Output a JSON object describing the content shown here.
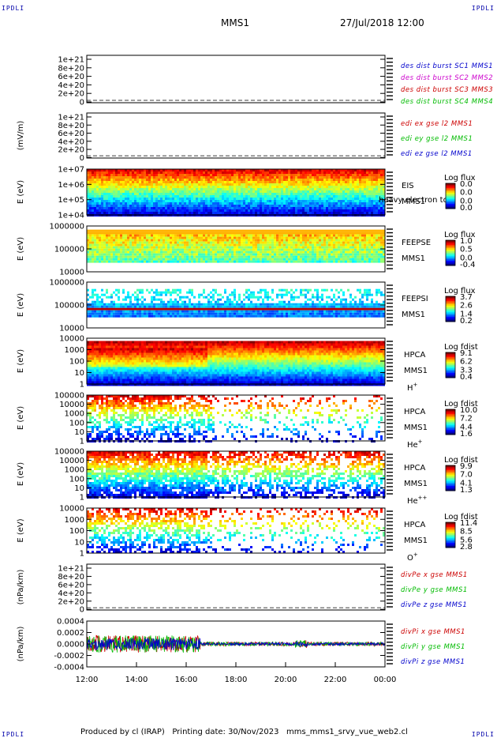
{
  "corner_labels": {
    "tl": "IPDLI",
    "tr": "IPDLI",
    "bl": "IPDLI",
    "br": "IPDLI"
  },
  "header": {
    "spacecraft": "MMS1",
    "datetime": "27/Jul/2018 12:00"
  },
  "footer": {
    "text": "Produced by cl (IRAP)   Printing date: 30/Nov/2023   mms_mms1_srvy_vue_web2.cl"
  },
  "colors": {
    "blue": "#0000cc",
    "magenta": "#cc00cc",
    "red": "#cc0000",
    "green": "#00bb00"
  },
  "chart_data": {
    "type": "stacked-panels",
    "x_ticks": [
      "12:00",
      "14:00",
      "16:00",
      "18:00",
      "20:00",
      "22:00",
      "00:00"
    ],
    "panels": [
      {
        "id": "p1",
        "type": "line",
        "ylabel": "",
        "ticks": [
          "1e+21",
          "8e+20",
          "6e+20",
          "4e+20",
          "2e+20",
          "0"
        ],
        "legend": [
          {
            "text": "des dist burst SC1 MMS1",
            "color": "#0000cc"
          },
          {
            "text": "des dist burst SC2 MMS2",
            "color": "#cc00cc"
          },
          {
            "text": "des dist burst SC3 MMS3",
            "color": "#cc0000"
          },
          {
            "text": "des dist burst SC4 MMS4",
            "color": "#00bb00"
          }
        ]
      },
      {
        "id": "p2",
        "type": "line",
        "ylabel": "(mV/m)",
        "ticks": [
          "1e+21",
          "8e+20",
          "6e+20",
          "4e+20",
          "2e+20",
          "0"
        ],
        "legend": [
          {
            "text": "edi ex gse l2 MMS1",
            "color": "#cc0000"
          },
          {
            "text": "edi ey gse l2 MMS1",
            "color": "#00bb00"
          },
          {
            "text": "edi ez gse l2 MMS1",
            "color": "#0000cc"
          }
        ]
      },
      {
        "id": "p3",
        "type": "spectrogram",
        "ylabel": "E (eV)",
        "ticks": [
          "1e+07",
          "1e+06",
          "1e+05",
          "1e+04"
        ],
        "labels": [
          "EIS",
          "MMS1"
        ],
        "overlay": "heavy electron to",
        "cb_title": "Log flux",
        "cb_ticks": [
          "0.0",
          "0.0",
          "0.0",
          "0.0"
        ]
      },
      {
        "id": "p4",
        "type": "spectrogram",
        "ylabel": "E (eV)",
        "ticks": [
          "1000000",
          "100000",
          "10000"
        ],
        "labels": [
          "FEEPSE",
          "MMS1"
        ],
        "cb_title": "Log flux",
        "cb_ticks": [
          "1.0",
          "0.5",
          "0.0",
          "-0.4"
        ]
      },
      {
        "id": "p5",
        "type": "spectrogram",
        "ylabel": "E (eV)",
        "ticks": [
          "1000000",
          "100000",
          "10000"
        ],
        "labels": [
          "FEEPSI",
          "MMS1"
        ],
        "cb_title": "Log flux",
        "cb_ticks": [
          "3.7",
          "2.6",
          "1.4",
          "0.2"
        ]
      },
      {
        "id": "p6",
        "type": "spectrogram",
        "ylabel": "E (eV)",
        "ticks": [
          "10000",
          "1000",
          "100",
          "10",
          "1"
        ],
        "labels": [
          "HPCA",
          "MMS1"
        ],
        "species": "H",
        "sup": "+",
        "cb_title": "Log fdist",
        "cb_ticks": [
          "9.1",
          "6.2",
          "3.3",
          "0.4"
        ]
      },
      {
        "id": "p7",
        "type": "spectrogram",
        "ylabel": "E (eV)",
        "ticks": [
          "100000",
          "10000",
          "1000",
          "100",
          "10",
          "1"
        ],
        "labels": [
          "HPCA",
          "MMS1"
        ],
        "species": "He",
        "sup": "+",
        "cb_title": "Log fdist",
        "cb_ticks": [
          "10.0",
          "7.2",
          "4.4",
          "1.6"
        ]
      },
      {
        "id": "p8",
        "type": "spectrogram",
        "ylabel": "E (eV)",
        "ticks": [
          "100000",
          "10000",
          "1000",
          "100",
          "10",
          "1"
        ],
        "labels": [
          "HPCA",
          "MMS1"
        ],
        "species": "He",
        "sup": "++",
        "cb_title": "Log fdist",
        "cb_ticks": [
          "9.9",
          "7.0",
          "4.1",
          "1.3"
        ]
      },
      {
        "id": "p9",
        "type": "spectrogram",
        "ylabel": "E (eV)",
        "ticks": [
          "10000",
          "1000",
          "100",
          "10",
          "1"
        ],
        "labels": [
          "HPCA",
          "MMS1"
        ],
        "species": "O",
        "sup": "+",
        "cb_title": "Log fdist",
        "cb_ticks": [
          "11.4",
          "8.5",
          "5.6",
          "2.8"
        ]
      },
      {
        "id": "p10",
        "type": "line",
        "ylabel": "(nPa/km)",
        "ticks": [
          "1e+21",
          "8e+20",
          "6e+20",
          "4e+20",
          "2e+20",
          "0"
        ],
        "legend": [
          {
            "text": "divPe x gse MMS1",
            "color": "#cc0000"
          },
          {
            "text": "divPe y gse MMS1",
            "color": "#00bb00"
          },
          {
            "text": "divPe z gse MMS1",
            "color": "#0000cc"
          }
        ]
      },
      {
        "id": "p11",
        "type": "line",
        "ylabel": "(nPa/km)",
        "ticks": [
          "0.0004",
          "0.0002",
          "0.0000",
          "-0.0002",
          "-0.0004"
        ],
        "legend": [
          {
            "text": "divPi x gse MMS1",
            "color": "#cc0000"
          },
          {
            "text": "divPi y gse MMS1",
            "color": "#00bb00"
          },
          {
            "text": "divPi z gse MMS1",
            "color": "#0000cc"
          }
        ]
      }
    ]
  }
}
